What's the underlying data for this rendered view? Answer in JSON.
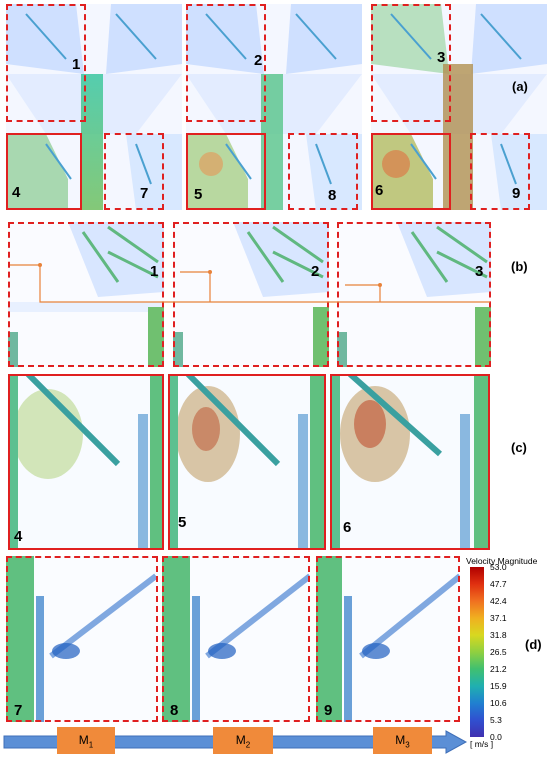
{
  "row_a": {
    "label": "(a)",
    "numbers": [
      "1",
      "2",
      "3",
      "4",
      "5",
      "6",
      "7",
      "8",
      "9"
    ]
  },
  "row_b": {
    "label": "(b)",
    "numbers": [
      "1",
      "2",
      "3"
    ]
  },
  "row_c": {
    "label": "(c)",
    "numbers": [
      "4",
      "5",
      "6"
    ]
  },
  "row_d": {
    "label": "(d)",
    "numbers": [
      "7",
      "8",
      "9"
    ]
  },
  "legend": {
    "title": "Velocity Magnitude",
    "ticks": [
      "53.0",
      "47.7",
      "42.4",
      "37.1",
      "31.8",
      "26.5",
      "21.2",
      "15.9",
      "10.6",
      "5.3",
      "0.0"
    ],
    "unit": "[ m/s ]"
  },
  "timeline": {
    "markers": [
      {
        "main": "M",
        "sub": "1"
      },
      {
        "main": "M",
        "sub": "2"
      },
      {
        "main": "M",
        "sub": "3"
      }
    ]
  },
  "colors": {
    "frame_red": "#e02020",
    "arrow_blue": "#5b8fd6",
    "marker_orange": "#f08a3a",
    "guide_orange": "#e8823a"
  }
}
